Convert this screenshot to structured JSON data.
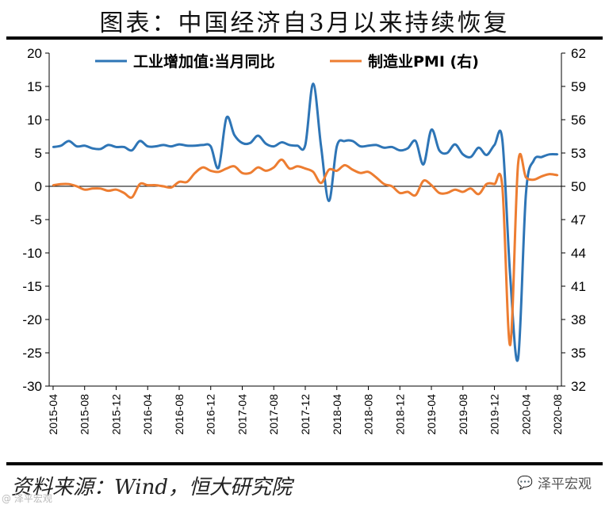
{
  "title": "图表：中国经济自3月以来持续恢复",
  "source": "资料来源：Wind，恒大研究院",
  "watermark": "泽平宏观",
  "watermark_corner": "@ 泽平宏观",
  "colors": {
    "industry": "#2E75B6",
    "pmi": "#ED7D31",
    "axis": "#000000"
  },
  "chart_data": {
    "type": "line",
    "title": "",
    "x": [
      "2015-04",
      "2015-05",
      "2015-06",
      "2015-07",
      "2015-08",
      "2015-09",
      "2015-10",
      "2015-11",
      "2015-12",
      "2016-01",
      "2016-02",
      "2016-03",
      "2016-04",
      "2016-05",
      "2016-06",
      "2016-07",
      "2016-08",
      "2016-09",
      "2016-10",
      "2016-11",
      "2016-12",
      "2017-01",
      "2017-02",
      "2017-03",
      "2017-04",
      "2017-05",
      "2017-06",
      "2017-07",
      "2017-08",
      "2017-09",
      "2017-10",
      "2017-11",
      "2017-12",
      "2018-01",
      "2018-02",
      "2018-03",
      "2018-04",
      "2018-05",
      "2018-06",
      "2018-07",
      "2018-08",
      "2018-09",
      "2018-10",
      "2018-11",
      "2018-12",
      "2019-01",
      "2019-02",
      "2019-03",
      "2019-04",
      "2019-05",
      "2019-06",
      "2019-07",
      "2019-08",
      "2019-09",
      "2019-10",
      "2019-11",
      "2019-12",
      "2020-01",
      "2020-02",
      "2020-03",
      "2020-04",
      "2020-05",
      "2020-06",
      "2020-07",
      "2020-08"
    ],
    "x_tick_labels": [
      "2015-04",
      "2015-08",
      "2015-12",
      "2016-04",
      "2016-08",
      "2016-12",
      "2017-04",
      "2017-08",
      "2017-12",
      "2018-04",
      "2018-08",
      "2018-12",
      "2019-04",
      "2019-08",
      "2019-12",
      "2020-04",
      "2020-08"
    ],
    "y_left": {
      "min": -30,
      "max": 20,
      "ticks": [
        20,
        15,
        10,
        5,
        0,
        -5,
        -10,
        -15,
        -20,
        -25,
        -30
      ]
    },
    "y_right": {
      "min": 32,
      "max": 62,
      "ticks": [
        62,
        59,
        56,
        53,
        50,
        47,
        44,
        41,
        38,
        35,
        32
      ]
    },
    "legend_position": "top-center",
    "grid": false,
    "series": [
      {
        "name": "工业增加值:当月同比",
        "axis": "left",
        "values": [
          5.9,
          6.1,
          6.8,
          6.0,
          6.1,
          5.7,
          5.6,
          6.2,
          5.9,
          5.9,
          5.4,
          6.8,
          6.0,
          6.0,
          6.2,
          6.0,
          6.3,
          6.1,
          6.1,
          6.2,
          6.0,
          2.8,
          10.3,
          7.7,
          6.5,
          6.5,
          7.6,
          6.4,
          6.0,
          6.6,
          6.2,
          6.1,
          6.2,
          15.4,
          6.0,
          -2.2,
          6.0,
          6.8,
          6.8,
          6.0,
          6.1,
          6.2,
          5.8,
          5.9,
          5.4,
          5.7,
          6.8,
          3.3,
          8.5,
          5.4,
          5.0,
          6.3,
          4.8,
          4.4,
          5.8,
          4.7,
          6.2,
          7.0,
          -13.5,
          -25.9,
          -1.1,
          3.9,
          4.4,
          4.8,
          4.8
        ]
      },
      {
        "name": "制造业PMI (右)",
        "axis": "right",
        "values": [
          50.1,
          50.2,
          50.2,
          50.0,
          49.7,
          49.8,
          49.8,
          49.6,
          49.7,
          49.4,
          49.0,
          50.2,
          50.1,
          50.1,
          50.0,
          49.9,
          50.4,
          50.4,
          51.2,
          51.7,
          51.4,
          51.3,
          51.6,
          51.8,
          51.2,
          51.2,
          51.7,
          51.4,
          51.7,
          52.4,
          51.6,
          51.8,
          51.6,
          51.3,
          50.3,
          51.5,
          51.4,
          51.9,
          51.5,
          51.2,
          51.3,
          50.8,
          50.2,
          50.0,
          49.4,
          49.5,
          49.2,
          50.5,
          50.1,
          49.4,
          49.4,
          49.7,
          49.5,
          49.8,
          49.3,
          50.2,
          50.2,
          50.0,
          35.7,
          52.0,
          50.8,
          50.6,
          50.9,
          51.1,
          51.0
        ]
      }
    ]
  }
}
